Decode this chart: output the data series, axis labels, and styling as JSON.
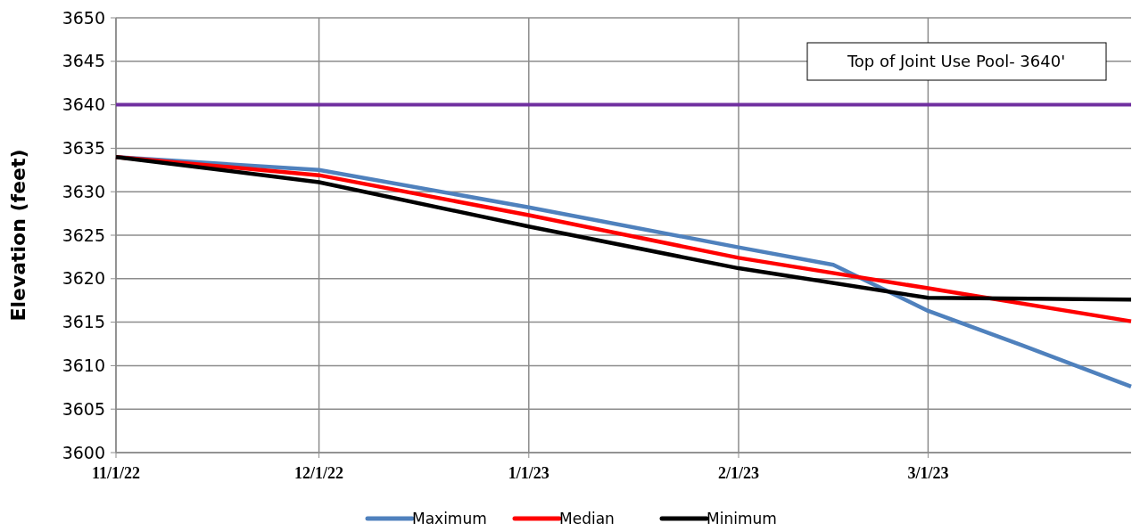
{
  "chart_data": {
    "type": "line",
    "ylabel": "Elevation (feet)",
    "x": [
      "2022-11-01",
      "2022-12-01",
      "2023-01-01",
      "2023-02-01",
      "2023-03-01",
      "2023-03-31"
    ],
    "xlim": [
      "2022-11-01",
      "2023-03-31"
    ],
    "xticks": [
      {
        "value": "2022-11-01",
        "label": "11/1/22"
      },
      {
        "value": "2022-12-01",
        "label": "12/1/22"
      },
      {
        "value": "2023-01-01",
        "label": "1/1/23"
      },
      {
        "value": "2023-02-01",
        "label": "2/1/23"
      },
      {
        "value": "2023-03-01",
        "label": "3/1/23"
      }
    ],
    "ylim": [
      3600,
      3650
    ],
    "yticks": [
      3600,
      3605,
      3610,
      3615,
      3620,
      3625,
      3630,
      3635,
      3640,
      3645,
      3650
    ],
    "series": [
      {
        "name": "Maximum",
        "color": "#4f81bd",
        "x": [
          "2022-11-01",
          "2022-12-01",
          "2023-01-01",
          "2023-02-01",
          "2023-02-15",
          "2023-03-01",
          "2023-03-15",
          "2023-03-31"
        ],
        "values": [
          3634.0,
          3632.5,
          3628.2,
          3623.6,
          3621.6,
          3616.3,
          3612.3,
          3607.6
        ]
      },
      {
        "name": "Median",
        "color": "#ff0000",
        "values": [
          3634.0,
          3631.9,
          3627.3,
          3622.4,
          3618.9,
          3615.1
        ]
      },
      {
        "name": "Minimum",
        "color": "#000000",
        "values": [
          3634.0,
          3631.1,
          3626.0,
          3621.2,
          3617.8,
          3617.6
        ]
      }
    ],
    "ref_lines": [
      {
        "axis": "y",
        "value": 3640,
        "color": "#7030a0"
      }
    ],
    "annotations": [
      "Top of Joint Use Pool- 3640'"
    ],
    "grid": true,
    "legend": "bottom",
    "line_style": "solid",
    "marker": "none"
  }
}
